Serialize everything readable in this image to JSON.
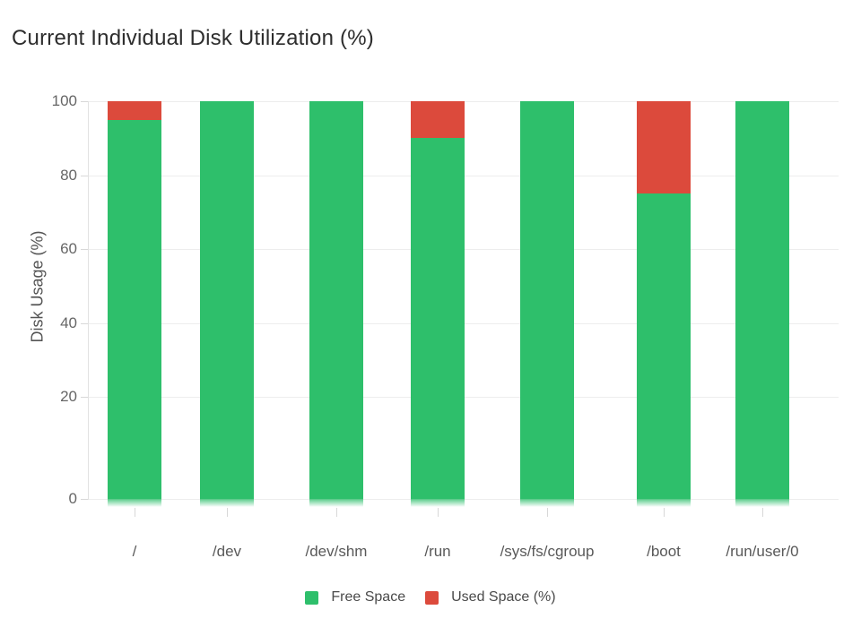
{
  "chart_data": {
    "type": "bar",
    "stacked": true,
    "title": "Current Individual Disk Utilization (%)",
    "xlabel": "",
    "ylabel": "Disk Usage (%)",
    "ylim": [
      0,
      100
    ],
    "yticks": [
      0,
      20,
      40,
      60,
      80,
      100
    ],
    "grid": true,
    "legend_position": "bottom",
    "categories": [
      "/",
      "/dev",
      "/dev/shm",
      "/run",
      "/sys/fs/cgroup",
      "/boot",
      "/run/user/0"
    ],
    "series": [
      {
        "name": "Free Space",
        "color": "#2ebf6b",
        "values": [
          95,
          100,
          100,
          90,
          100,
          75,
          100
        ]
      },
      {
        "name": "Used Space (%)",
        "color": "#dc4a3c",
        "values": [
          5,
          0,
          0,
          10,
          0,
          25,
          0
        ]
      }
    ]
  },
  "colors": {
    "title": "#2d2d2d",
    "y_axis_title": "#555555",
    "grid_line": "#ededed",
    "axis_line": "#e2e2e2",
    "tick_mark": "#d8d8d8",
    "y_tick_label": "#666666",
    "x_tick_label": "#595959",
    "legend_label": "#4a4a4a"
  }
}
